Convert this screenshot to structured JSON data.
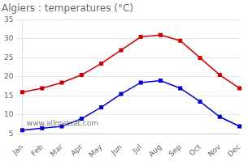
{
  "chart_data": {
    "type": "line",
    "title": "Algiers : temperatures (°C)",
    "categories": [
      "Jan",
      "Feb",
      "Mar",
      "Apr",
      "May",
      "Jun",
      "Jul",
      "Aug",
      "Sep",
      "Oct",
      "Nov",
      "Dec"
    ],
    "series": [
      {
        "color": "#cc0000",
        "marker": "square",
        "values": [
          16.0,
          17.0,
          18.5,
          20.5,
          23.5,
          27.0,
          30.5,
          31.0,
          29.5,
          25.0,
          20.5,
          17.0
        ]
      },
      {
        "color": "#0000cc",
        "marker": "square",
        "values": [
          6.0,
          6.5,
          7.0,
          9.0,
          12.0,
          15.5,
          18.5,
          19.0,
          17.0,
          13.5,
          9.5,
          7.0
        ]
      }
    ],
    "ylim": [
      5,
      35
    ],
    "yticks": [
      5,
      10,
      15,
      20,
      25,
      30,
      35
    ],
    "grid": true,
    "annotation": "www.allmetsat.com"
  }
}
